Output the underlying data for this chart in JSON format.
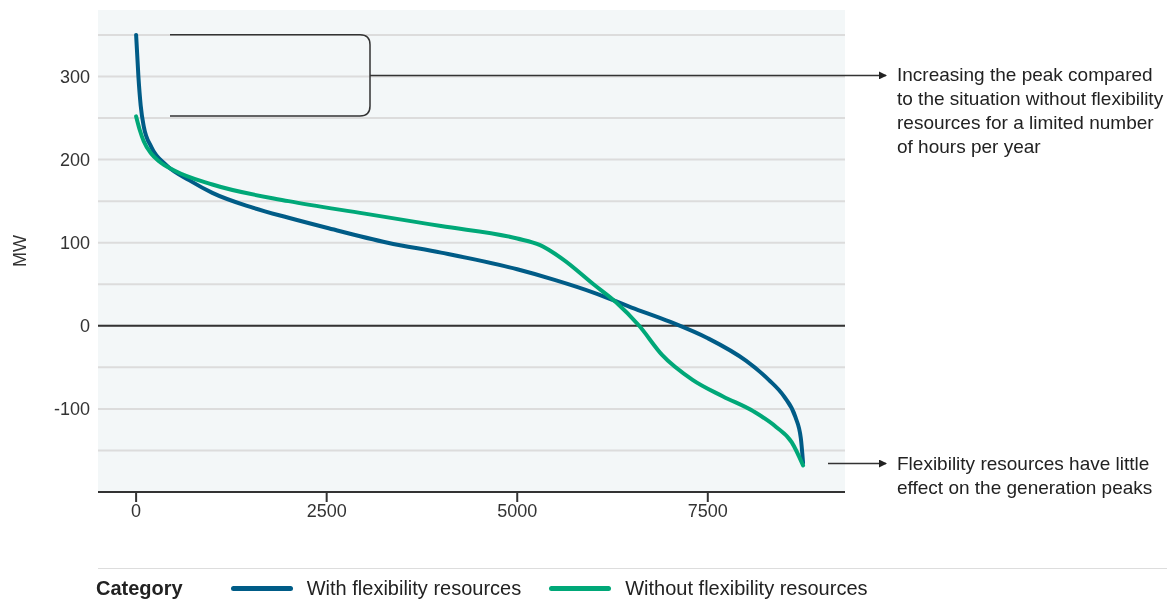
{
  "chart_data": {
    "type": "line",
    "ylabel": "MW",
    "legend_title": "Category",
    "legend": "bottom",
    "grid": "y",
    "xlim": [
      -500,
      9300
    ],
    "xticks": [
      0,
      2500,
      5000,
      7500
    ],
    "ylim": [
      -200,
      380
    ],
    "yticks": [
      {
        "value": -150,
        "label": null
      },
      -100,
      {
        "value": -50,
        "label": null
      },
      0,
      {
        "value": 50,
        "label": null
      },
      100,
      {
        "value": 150,
        "label": null
      },
      200,
      {
        "value": 250,
        "label": null
      },
      300,
      {
        "value": 350,
        "label": null
      }
    ],
    "ref_lines": [
      {
        "axis": "y",
        "value": 0,
        "color": "#333333"
      }
    ],
    "annotations": [
      "Increasing the peak compared to the situation without flexibility resources for a limited number of hours per year",
      "Flexibility resources have little effect on the generation peaks"
    ],
    "series": [
      {
        "name": "With flexibility resources",
        "color": "#005c87",
        "x": [
          0,
          30,
          60,
          100,
          200,
          400,
          700,
          1000,
          1500,
          2000,
          2500,
          3300,
          4000,
          5000,
          5500,
          6000,
          6500,
          7000,
          7500,
          8000,
          8300,
          8500,
          8650,
          8720,
          8750
        ],
        "values": [
          350,
          300,
          265,
          240,
          215,
          193,
          175,
          160,
          143,
          130,
          118,
          100,
          88,
          68,
          55,
          40,
          22,
          5,
          -15,
          -42,
          -65,
          -85,
          -110,
          -135,
          -165
        ]
      },
      {
        "name": "Without flexibility resources",
        "color": "#00a878",
        "x": [
          0,
          50,
          100,
          200,
          300,
          500,
          1000,
          2000,
          3000,
          4000,
          5000,
          5300,
          5600,
          6000,
          6300,
          6600,
          6900,
          7300,
          7700,
          8100,
          8400,
          8600,
          8750
        ],
        "values": [
          252,
          235,
          222,
          207,
          198,
          187,
          170,
          150,
          135,
          120,
          105,
          97,
          80,
          50,
          28,
          0,
          -35,
          -65,
          -85,
          -103,
          -122,
          -140,
          -168
        ]
      }
    ]
  }
}
